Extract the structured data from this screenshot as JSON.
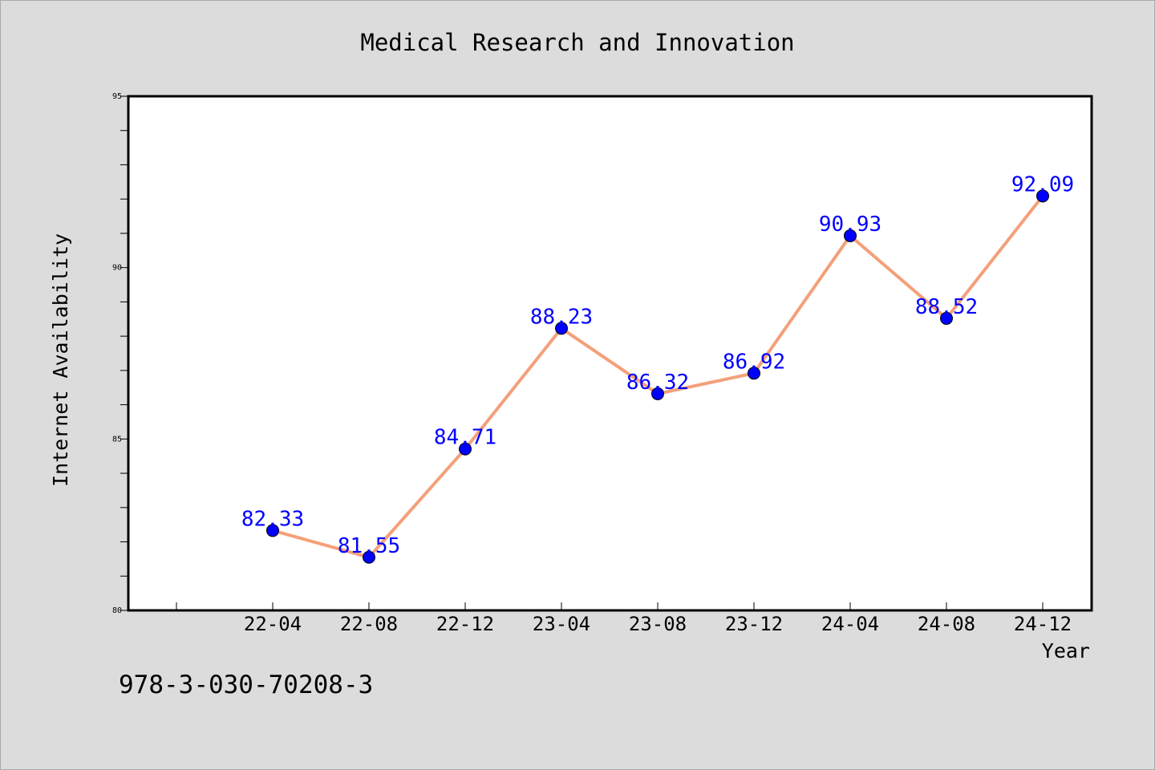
{
  "chart_data": {
    "type": "line",
    "title": "Medical Research and Innovation",
    "xlabel": "Year",
    "ylabel": "Internet Availability",
    "categories": [
      "22-04",
      "22-08",
      "22-12",
      "23-04",
      "23-08",
      "23-12",
      "24-04",
      "24-08",
      "24-12"
    ],
    "series": [
      {
        "values": [
          82.33,
          81.55,
          84.71,
          88.23,
          86.32,
          86.92,
          90.93,
          88.52,
          92.09
        ],
        "data_labels": [
          "82.33",
          "81.55",
          "84.71",
          "88.23",
          "86.32",
          "86.92",
          "90.93",
          "88.52",
          "92.09"
        ],
        "line_color": "#f4a07a",
        "marker_color": "#0000ff"
      }
    ],
    "ylim": [
      80,
      95
    ],
    "yticks": [
      "80",
      "85",
      "90",
      "95"
    ],
    "grid": false,
    "legend": "none",
    "data_label_color": "#0000ff",
    "background_color": "#dcdcdc",
    "plot_background_color": "#ffffff"
  },
  "footnote": "978-3-030-70208-3"
}
